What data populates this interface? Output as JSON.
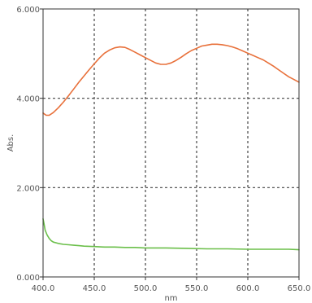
{
  "chart_data": {
    "type": "line",
    "title": "",
    "xlabel": "nm",
    "ylabel": "Abs.",
    "xlim": [
      400.0,
      650.0
    ],
    "ylim": [
      0.0,
      6.0
    ],
    "grid": true,
    "x_ticks": [
      "400.0",
      "450.0",
      "500.0",
      "550.0",
      "600.0",
      "650.0"
    ],
    "y_ticks": [
      "0.000",
      "2.000",
      "4.000",
      "6.000"
    ],
    "series": [
      {
        "color": "#e8703a",
        "x": [
          400,
          403,
          406,
          410,
          415,
          420,
          425,
          430,
          435,
          440,
          445,
          450,
          455,
          460,
          465,
          470,
          475,
          480,
          485,
          490,
          495,
          500,
          505,
          510,
          515,
          520,
          525,
          530,
          535,
          540,
          545,
          550,
          555,
          560,
          565,
          570,
          575,
          580,
          585,
          590,
          595,
          600,
          605,
          610,
          615,
          620,
          625,
          630,
          635,
          640,
          645,
          650
        ],
        "y": [
          3.67,
          3.62,
          3.62,
          3.68,
          3.79,
          3.92,
          4.06,
          4.21,
          4.36,
          4.5,
          4.64,
          4.77,
          4.9,
          5.01,
          5.08,
          5.13,
          5.15,
          5.14,
          5.09,
          5.03,
          4.97,
          4.91,
          4.85,
          4.79,
          4.76,
          4.76,
          4.79,
          4.85,
          4.92,
          5.0,
          5.07,
          5.12,
          5.17,
          5.19,
          5.21,
          5.21,
          5.2,
          5.18,
          5.15,
          5.11,
          5.06,
          5.01,
          4.96,
          4.91,
          4.86,
          4.79,
          4.72,
          4.64,
          4.56,
          4.48,
          4.42,
          4.36
        ]
      },
      {
        "color": "#6bbf4a",
        "x": [
          400,
          401,
          402,
          404,
          406,
          408,
          410,
          415,
          420,
          425,
          430,
          435,
          440,
          450,
          460,
          470,
          480,
          490,
          500,
          520,
          540,
          560,
          580,
          600,
          620,
          640,
          650
        ],
        "y": [
          1.3,
          1.18,
          1.05,
          0.94,
          0.86,
          0.81,
          0.78,
          0.75,
          0.73,
          0.72,
          0.71,
          0.7,
          0.69,
          0.68,
          0.67,
          0.67,
          0.66,
          0.66,
          0.65,
          0.65,
          0.64,
          0.63,
          0.63,
          0.62,
          0.62,
          0.62,
          0.61
        ]
      }
    ]
  }
}
